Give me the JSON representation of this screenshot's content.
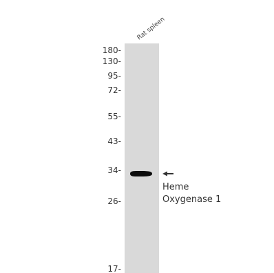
{
  "sample": {
    "lane_label": "Rat spleen"
  },
  "markers": [
    {
      "value": 180,
      "label": "180-"
    },
    {
      "value": 130,
      "label": "130-"
    },
    {
      "value": 95,
      "label": "95-"
    },
    {
      "value": 72,
      "label": "72-"
    },
    {
      "value": 55,
      "label": "55-"
    },
    {
      "value": 43,
      "label": "43-"
    },
    {
      "value": 34,
      "label": "34-"
    },
    {
      "value": 26,
      "label": "26-"
    },
    {
      "value": 17,
      "label": "17-"
    }
  ],
  "band": {
    "apparent_mw_kda": 33
  },
  "target": {
    "line1": "Heme",
    "line2": "Oxygenase 1"
  },
  "colors": {
    "lane": "#d9d9d9",
    "band": "#0d0d0d",
    "text": "#333333"
  },
  "icons": {
    "band_arrow": "arrow-left-icon"
  }
}
